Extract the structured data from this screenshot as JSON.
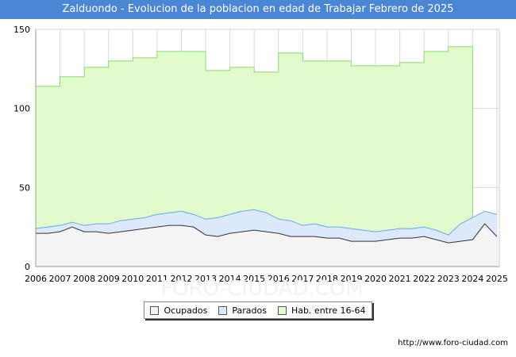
{
  "title": "Zalduondo - Evolucion de la poblacion en edad de Trabajar Febrero de 2025",
  "source": "http://www.foro-ciudad.com",
  "colors": {
    "title_bg": "#4a86d4",
    "hab": "#e2fbcd",
    "hab_line": "#8fd872",
    "parados": "#dbe9fb",
    "parados_line": "#6aa7e8",
    "ocupados": "#f4f4f4",
    "ocupados_line": "#333333",
    "grid": "#d9d9d9"
  },
  "legend": [
    {
      "label": "Ocupados",
      "color": "#f4f4f4"
    },
    {
      "label": "Parados",
      "color": "#dbe9fb"
    },
    {
      "label": "Hab. entre 16-64",
      "color": "#e2fbcd"
    }
  ],
  "chart_data": {
    "type": "area",
    "x_ticks": [
      "2006",
      "2007",
      "2008",
      "2009",
      "2010",
      "2011",
      "2012",
      "2013",
      "2014",
      "2015",
      "2016",
      "2017",
      "2018",
      "2019",
      "2020",
      "2021",
      "2022",
      "2023",
      "2024",
      "2025"
    ],
    "y_ticks": [
      "0",
      "50",
      "100",
      "150"
    ],
    "ylim": [
      0,
      150
    ],
    "xlim": [
      2006,
      2025.1
    ],
    "grid": true,
    "legend_position": "bottom",
    "series": [
      {
        "name": "Hab. entre 16-64",
        "x": [
          2006,
          2007,
          2008,
          2009,
          2010,
          2011,
          2012,
          2013,
          2014,
          2015,
          2016,
          2017,
          2018,
          2019,
          2020,
          2021,
          2022,
          2023,
          2024
        ],
        "values": [
          114,
          120,
          126,
          130,
          132,
          136,
          136,
          124,
          126,
          123,
          135,
          130,
          130,
          127,
          127,
          129,
          136,
          139,
          0
        ]
      },
      {
        "name": "Parados",
        "x": [
          2006,
          2006.5,
          2007,
          2007.5,
          2008,
          2008.5,
          2009,
          2009.5,
          2010,
          2010.5,
          2011,
          2011.5,
          2012,
          2012.5,
          2013,
          2013.5,
          2014,
          2014.5,
          2015,
          2015.5,
          2016,
          2016.5,
          2017,
          2017.5,
          2018,
          2018.5,
          2019,
          2019.5,
          2020,
          2020.5,
          2021,
          2021.5,
          2022,
          2022.5,
          2023,
          2023.5,
          2024,
          2024.5,
          2025
        ],
        "values": [
          24,
          25,
          26,
          28,
          26,
          27,
          27,
          29,
          30,
          31,
          33,
          34,
          35,
          33,
          30,
          31,
          33,
          35,
          36,
          34,
          30,
          29,
          26,
          27,
          25,
          25,
          24,
          23,
          22,
          23,
          24,
          24,
          25,
          23,
          20,
          27,
          31,
          35,
          33
        ]
      },
      {
        "name": "Ocupados",
        "x": [
          2006,
          2006.5,
          2007,
          2007.5,
          2008,
          2008.5,
          2009,
          2009.5,
          2010,
          2010.5,
          2011,
          2011.5,
          2012,
          2012.5,
          2013,
          2013.5,
          2014,
          2014.5,
          2015,
          2015.5,
          2016,
          2016.5,
          2017,
          2017.5,
          2018,
          2018.5,
          2019,
          2019.5,
          2020,
          2020.5,
          2021,
          2021.5,
          2022,
          2022.5,
          2023,
          2023.5,
          2024,
          2024.5,
          2025
        ],
        "values": [
          21,
          21,
          22,
          25,
          22,
          22,
          21,
          22,
          23,
          24,
          25,
          26,
          26,
          25,
          20,
          19,
          21,
          22,
          23,
          22,
          21,
          19,
          19,
          19,
          18,
          18,
          16,
          16,
          16,
          17,
          18,
          18,
          19,
          17,
          15,
          16,
          17,
          27,
          19
        ]
      }
    ]
  }
}
